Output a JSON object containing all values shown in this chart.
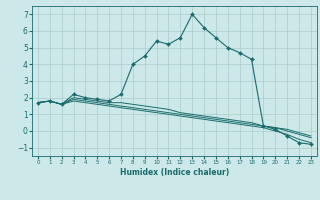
{
  "xlabel": "Humidex (Indice chaleur)",
  "bg_color": "#cce8e8",
  "grid_color": "#aacccc",
  "line_color": "#1a6b6b",
  "xlim": [
    -0.5,
    23.5
  ],
  "ylim": [
    -1.5,
    7.5
  ],
  "yticks": [
    -1,
    0,
    1,
    2,
    3,
    4,
    5,
    6,
    7
  ],
  "xticks": [
    0,
    1,
    2,
    3,
    4,
    5,
    6,
    7,
    8,
    9,
    10,
    11,
    12,
    13,
    14,
    15,
    16,
    17,
    18,
    19,
    20,
    21,
    22,
    23
  ],
  "series1_x": [
    0,
    1,
    2,
    3,
    4,
    5,
    6,
    7,
    8,
    9,
    10,
    11,
    12,
    13,
    14,
    15,
    16,
    17,
    18,
    19,
    20,
    21,
    22,
    23
  ],
  "series1_y": [
    1.7,
    1.8,
    1.6,
    2.2,
    2.0,
    1.9,
    1.8,
    2.2,
    4.0,
    4.5,
    5.4,
    5.2,
    5.6,
    7.0,
    6.2,
    5.6,
    5.0,
    4.7,
    4.3,
    0.3,
    0.1,
    -0.3,
    -0.7,
    -0.8
  ],
  "series2_x": [
    0,
    1,
    2,
    3,
    4,
    5,
    6,
    7,
    8,
    9,
    10,
    11,
    12,
    13,
    14,
    15,
    16,
    17,
    18,
    19,
    20,
    21,
    22,
    23
  ],
  "series2_y": [
    1.7,
    1.8,
    1.6,
    1.9,
    1.8,
    1.7,
    1.6,
    1.5,
    1.4,
    1.3,
    1.2,
    1.1,
    1.0,
    0.9,
    0.8,
    0.7,
    0.6,
    0.5,
    0.4,
    0.3,
    0.2,
    0.1,
    -0.1,
    -0.3
  ],
  "series3_x": [
    0,
    1,
    2,
    3,
    4,
    5,
    6,
    7,
    8,
    9,
    10,
    11,
    12,
    13,
    14,
    15,
    16,
    17,
    18,
    19,
    20,
    21,
    22,
    23
  ],
  "series3_y": [
    1.7,
    1.8,
    1.6,
    2.0,
    1.9,
    1.8,
    1.7,
    1.7,
    1.6,
    1.5,
    1.4,
    1.3,
    1.1,
    1.0,
    0.9,
    0.8,
    0.7,
    0.6,
    0.5,
    0.3,
    0.2,
    0.0,
    -0.2,
    -0.4
  ],
  "series4_x": [
    0,
    1,
    2,
    3,
    4,
    5,
    6,
    7,
    8,
    9,
    10,
    11,
    12,
    13,
    14,
    15,
    16,
    17,
    18,
    19,
    20,
    21,
    22,
    23
  ],
  "series4_y": [
    1.7,
    1.8,
    1.6,
    1.8,
    1.7,
    1.6,
    1.5,
    1.4,
    1.3,
    1.2,
    1.1,
    1.0,
    0.9,
    0.8,
    0.7,
    0.6,
    0.5,
    0.4,
    0.3,
    0.2,
    0.0,
    -0.2,
    -0.5,
    -0.7
  ]
}
